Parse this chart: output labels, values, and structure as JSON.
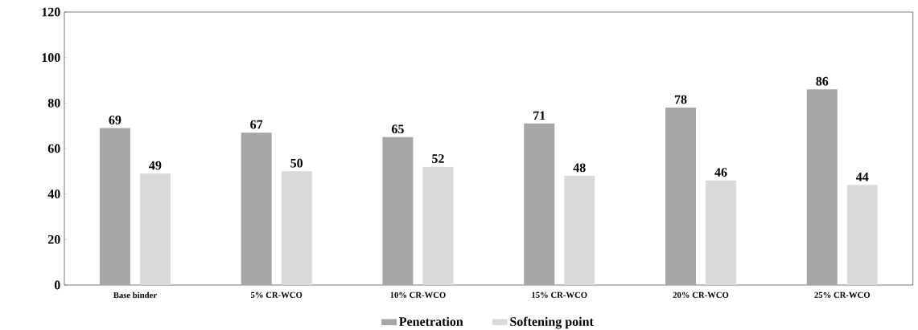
{
  "chart_data": {
    "type": "bar",
    "categories": [
      "Base binder",
      "5% CR-WCO",
      "10% CR-WCO",
      "15% CR-WCO",
      "20% CR-WCO",
      "25% CR-WCO"
    ],
    "series": [
      {
        "name": "Penetration",
        "color": "#a6a6a6",
        "values": [
          69,
          67,
          65,
          71,
          78,
          86
        ]
      },
      {
        "name": "Softening point",
        "color": "#d9d9d9",
        "values": [
          49,
          50,
          52,
          48,
          46,
          44
        ]
      }
    ],
    "ylim": [
      0,
      120
    ],
    "yticks": [
      0,
      20,
      40,
      60,
      80,
      100,
      120
    ],
    "grid": false,
    "legend": "bottom",
    "data_labels": true
  }
}
